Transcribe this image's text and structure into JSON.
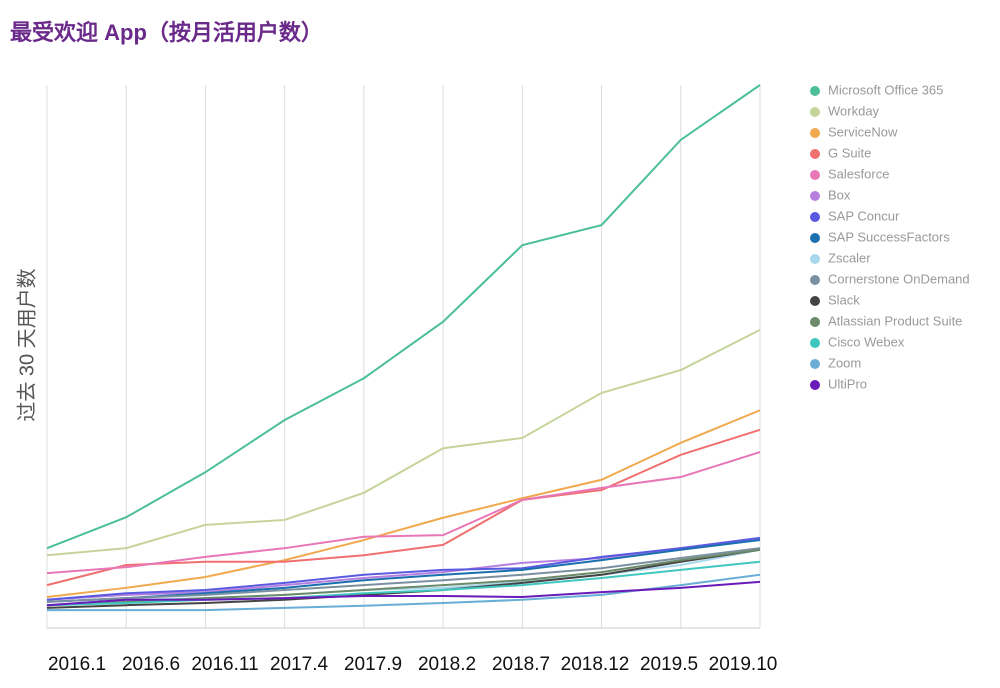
{
  "chart_data": {
    "type": "line",
    "title": "最受欢迎 App（按月活用户数）",
    "y_label": "过去 30 天用户数",
    "categories": [
      "2016.1",
      "2016.6",
      "2016.11",
      "2017.4",
      "2017.9",
      "2018.2",
      "2018.7",
      "2018.12",
      "2019.5",
      "2019.10"
    ],
    "ylim": [
      0,
      100
    ],
    "grid": true,
    "legend": "right",
    "series": [
      {
        "name": "Microsoft Office 365",
        "color": "#4cbf9a",
        "values": [
          14.7,
          20.4,
          28.7,
          38.3,
          46.0,
          56.4,
          70.5,
          74.2,
          89.9,
          100
        ]
      },
      {
        "name": "Workday",
        "color": "#c5d49a",
        "values": [
          13.4,
          14.7,
          19.0,
          19.9,
          24.9,
          33.1,
          35.0,
          43.3,
          47.5,
          54.9
        ]
      },
      {
        "name": "ServiceNow",
        "color": "#f0a94e",
        "values": [
          5.7,
          7.4,
          9.4,
          12.5,
          16.2,
          20.3,
          23.9,
          27.3,
          34.1,
          40.1
        ]
      },
      {
        "name": "G Suite",
        "color": "#f07070",
        "values": [
          7.9,
          11.6,
          12.2,
          12.2,
          13.4,
          15.3,
          23.6,
          25.4,
          31.9,
          36.5
        ]
      },
      {
        "name": "Salesforce",
        "color": "#e877b8",
        "values": [
          10.1,
          11.2,
          13.1,
          14.7,
          16.8,
          17.1,
          23.6,
          25.8,
          27.8,
          32.4
        ]
      },
      {
        "name": "Box",
        "color": "#b77fe0",
        "values": [
          5.2,
          6.1,
          6.6,
          7.9,
          9.2,
          10.3,
          12.0,
          12.9,
          14.7,
          16.2
        ]
      },
      {
        "name": "SAP Concur",
        "color": "#5a5ae0",
        "values": [
          5.2,
          6.4,
          7.0,
          8.3,
          9.8,
          10.7,
          11.0,
          13.1,
          14.7,
          16.6
        ]
      },
      {
        "name": "SAP SuccessFactors",
        "color": "#1a6fae",
        "values": [
          4.8,
          5.5,
          6.4,
          7.4,
          8.8,
          9.8,
          10.7,
          12.5,
          14.4,
          16.2
        ]
      },
      {
        "name": "Zscaler",
        "color": "#a8d8ec",
        "values": [
          4.2,
          5.2,
          5.5,
          6.1,
          7.0,
          7.4,
          8.5,
          9.8,
          11.6,
          14.4
        ]
      },
      {
        "name": "Cornerstone OnDemand",
        "color": "#7a90a0",
        "values": [
          4.8,
          5.5,
          6.1,
          7.0,
          7.9,
          8.8,
          9.8,
          11.0,
          12.9,
          14.7
        ]
      },
      {
        "name": "Slack",
        "color": "#444444",
        "values": [
          3.7,
          4.2,
          4.6,
          5.2,
          6.1,
          7.0,
          8.3,
          9.8,
          12.2,
          14.4
        ]
      },
      {
        "name": "Atlassian Product Suite",
        "color": "#6a8a6a",
        "values": [
          4.2,
          4.8,
          5.5,
          6.1,
          7.0,
          7.9,
          8.8,
          10.3,
          12.5,
          14.4
        ]
      },
      {
        "name": "Cisco Webex",
        "color": "#40c8c0",
        "values": [
          4.2,
          4.6,
          5.2,
          5.5,
          6.4,
          7.0,
          7.9,
          9.2,
          10.7,
          12.2
        ]
      },
      {
        "name": "Zoom",
        "color": "#6aaed6",
        "values": [
          3.3,
          3.3,
          3.3,
          3.7,
          4.1,
          4.6,
          5.2,
          6.1,
          7.9,
          9.8
        ]
      },
      {
        "name": "UltiPro",
        "color": "#6a1ab8",
        "values": [
          4.2,
          5.2,
          5.2,
          5.5,
          5.9,
          5.9,
          5.7,
          6.6,
          7.4,
          8.5
        ]
      }
    ]
  }
}
